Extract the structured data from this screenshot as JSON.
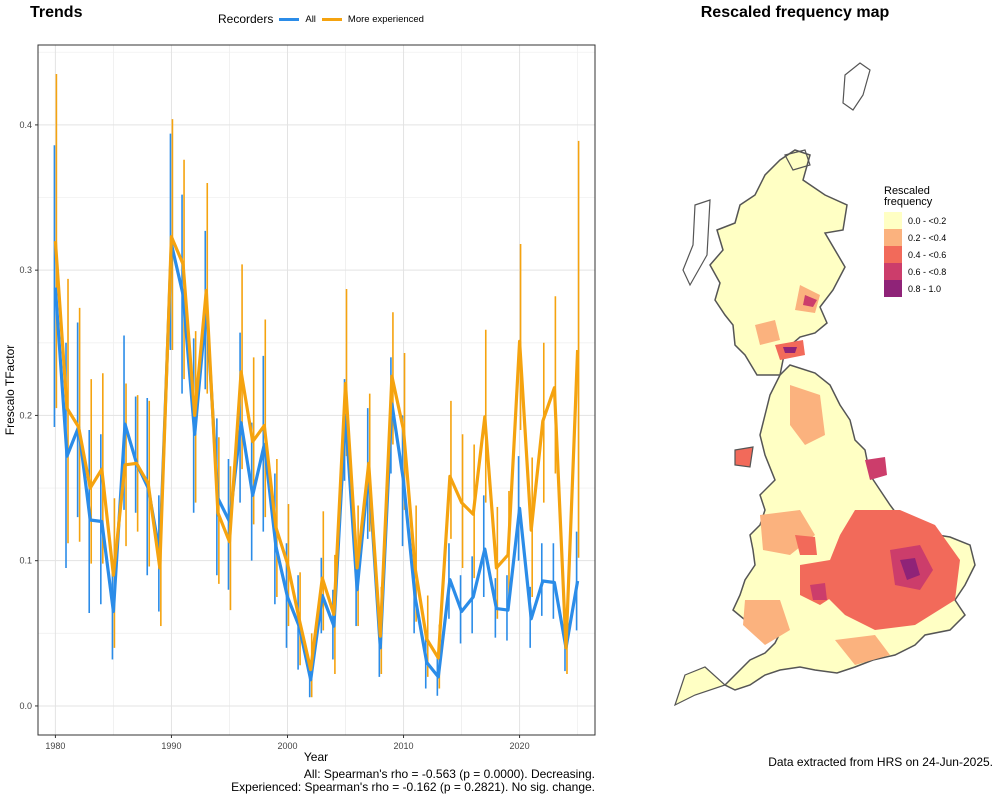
{
  "titles": {
    "left": "Trends",
    "right": "Rescaled frequency map"
  },
  "legend": {
    "title": "Recorders",
    "items": [
      {
        "name": "All",
        "color": "#2b8ce8"
      },
      {
        "name": "More experienced",
        "color": "#f5a30f"
      }
    ]
  },
  "chart_data": {
    "type": "line",
    "xlabel": "Year",
    "ylabel": "Frescalo TFactor",
    "xlim": [
      1978.5,
      2026.5
    ],
    "ylim": [
      -0.02,
      0.455
    ],
    "xticks": [
      1980,
      1990,
      2000,
      2010,
      2020
    ],
    "yticks": [
      0.0,
      0.1,
      0.2,
      0.3,
      0.4
    ],
    "grid": true,
    "legend_position": "top",
    "x": [
      1980,
      1981,
      1982,
      1983,
      1984,
      1985,
      1986,
      1987,
      1988,
      1989,
      1990,
      1991,
      1992,
      1993,
      1994,
      1995,
      1996,
      1997,
      1998,
      1999,
      2000,
      2001,
      2002,
      2003,
      2004,
      2005,
      2006,
      2007,
      2008,
      2009,
      2010,
      2011,
      2012,
      2013,
      2014,
      2015,
      2016,
      2017,
      2018,
      2019,
      2020,
      2021,
      2022,
      2023,
      2024,
      2025
    ],
    "series": [
      {
        "name": "All",
        "color": "#2b8ce8",
        "values": [
          0.288,
          0.172,
          0.192,
          0.128,
          0.127,
          0.065,
          0.194,
          0.167,
          0.15,
          0.105,
          0.318,
          0.283,
          0.187,
          0.275,
          0.143,
          0.127,
          0.195,
          0.145,
          0.18,
          0.11,
          0.075,
          0.055,
          0.018,
          0.076,
          0.055,
          0.2,
          0.08,
          0.162,
          0.04,
          0.208,
          0.155,
          0.075,
          0.03,
          0.02,
          0.087,
          0.065,
          0.075,
          0.108,
          0.067,
          0.066,
          0.136,
          0.06,
          0.086,
          0.085,
          0.04,
          0.086
        ],
        "lower": [
          0.192,
          0.095,
          0.13,
          0.064,
          0.07,
          0.032,
          0.135,
          0.133,
          0.09,
          0.065,
          0.245,
          0.215,
          0.133,
          0.218,
          0.09,
          0.08,
          0.14,
          0.1,
          0.12,
          0.07,
          0.04,
          0.025,
          0.006,
          0.05,
          0.032,
          0.155,
          0.055,
          0.115,
          0.02,
          0.16,
          0.11,
          0.05,
          0.012,
          0.007,
          0.06,
          0.043,
          0.05,
          0.075,
          0.047,
          0.045,
          0.1,
          0.04,
          0.062,
          0.06,
          0.024,
          0.052
        ],
        "upper": [
          0.386,
          0.25,
          0.264,
          0.19,
          0.187,
          0.098,
          0.255,
          0.213,
          0.212,
          0.145,
          0.394,
          0.352,
          0.253,
          0.327,
          0.198,
          0.17,
          0.257,
          0.195,
          0.241,
          0.16,
          0.112,
          0.09,
          0.03,
          0.102,
          0.08,
          0.225,
          0.11,
          0.205,
          0.06,
          0.24,
          0.2,
          0.102,
          0.048,
          0.035,
          0.112,
          0.09,
          0.103,
          0.145,
          0.088,
          0.09,
          0.172,
          0.082,
          0.112,
          0.112,
          0.058,
          0.12
        ]
      },
      {
        "name": "More experienced",
        "color": "#f5a30f",
        "values": [
          0.32,
          0.205,
          0.192,
          0.15,
          0.163,
          0.09,
          0.166,
          0.167,
          0.153,
          0.095,
          0.323,
          0.304,
          0.2,
          0.286,
          0.133,
          0.113,
          0.23,
          0.182,
          0.193,
          0.123,
          0.098,
          0.06,
          0.025,
          0.088,
          0.063,
          0.222,
          0.095,
          0.167,
          0.048,
          0.227,
          0.19,
          0.095,
          0.046,
          0.033,
          0.158,
          0.14,
          0.132,
          0.199,
          0.095,
          0.104,
          0.251,
          0.121,
          0.196,
          0.219,
          0.04,
          0.245
        ],
        "lower": [
          0.205,
          0.112,
          0.113,
          0.098,
          0.098,
          0.04,
          0.11,
          0.12,
          0.096,
          0.055,
          0.245,
          0.225,
          0.14,
          0.215,
          0.084,
          0.066,
          0.163,
          0.125,
          0.13,
          0.075,
          0.055,
          0.028,
          0.006,
          0.052,
          0.022,
          0.172,
          0.055,
          0.12,
          0.022,
          0.18,
          0.135,
          0.058,
          0.02,
          0.012,
          0.115,
          0.095,
          0.088,
          0.14,
          0.06,
          0.068,
          0.19,
          0.075,
          0.14,
          0.16,
          0.022,
          0.102
        ],
        "upper": [
          0.435,
          0.294,
          0.274,
          0.225,
          0.229,
          0.143,
          0.222,
          0.214,
          0.21,
          0.134,
          0.404,
          0.376,
          0.258,
          0.36,
          0.185,
          0.165,
          0.304,
          0.24,
          0.266,
          0.17,
          0.139,
          0.092,
          0.05,
          0.134,
          0.104,
          0.287,
          0.138,
          0.215,
          0.082,
          0.271,
          0.243,
          0.138,
          0.076,
          0.056,
          0.21,
          0.187,
          0.18,
          0.259,
          0.137,
          0.148,
          0.318,
          0.171,
          0.25,
          0.282,
          0.06,
          0.389
        ]
      }
    ]
  },
  "footnotes": [
    "All: Spearman's rho = -0.563 (p = 0.0000). Decreasing.",
    "Experienced: Spearman's rho = -0.162 (p = 0.2821). No sig. change."
  ],
  "map": {
    "legend_title_1": "Rescaled",
    "legend_title_2": "frequency",
    "classes": [
      {
        "label": "0.0 - <0.2",
        "color": "#ffffc4"
      },
      {
        "label": "0.2 - <0.4",
        "color": "#fbb27e"
      },
      {
        "label": "0.4 - <0.6",
        "color": "#f26a5a"
      },
      {
        "label": "0.6 - <0.8",
        "color": "#cc3d6b"
      },
      {
        "label": "0.8 - 1.0",
        "color": "#8f2378"
      }
    ],
    "coastline_color": "#555555"
  },
  "data_note": "Data extracted from HRS on 24-Jun-2025."
}
